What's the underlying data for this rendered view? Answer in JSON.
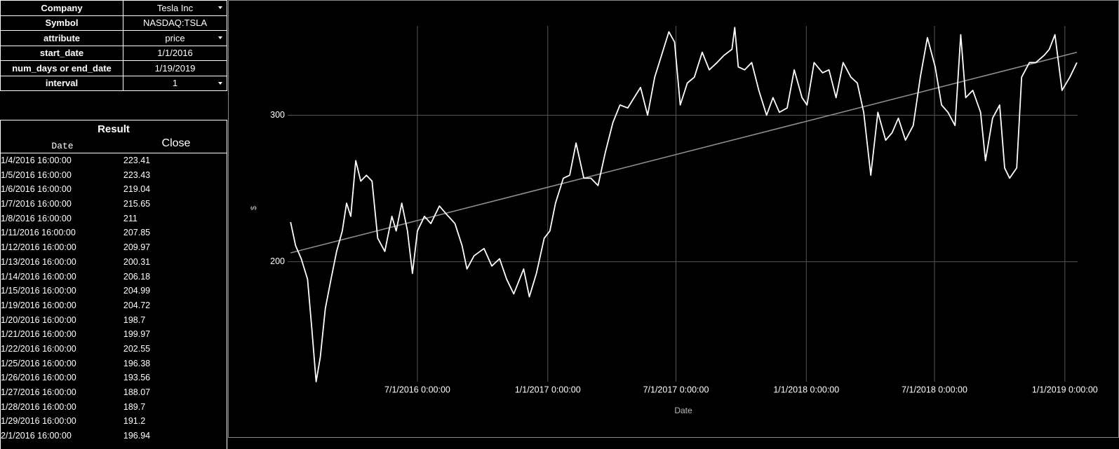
{
  "parameters": {
    "rows": [
      {
        "label": "Company",
        "value": "Tesla Inc"
      },
      {
        "label": "Symbol",
        "value": "NASDAQ:TSLA"
      },
      {
        "label": "attribute",
        "value": "price"
      },
      {
        "label": "start_date",
        "value": "1/1/2016"
      },
      {
        "label": "num_days or end_date",
        "value": "1/19/2019"
      },
      {
        "label": "interval",
        "value": "1"
      }
    ]
  },
  "result": {
    "title": "Result",
    "columns": [
      "Date",
      "Close"
    ],
    "rows": [
      [
        "1/4/2016 16:00:00",
        223.41
      ],
      [
        "1/5/2016 16:00:00",
        223.43
      ],
      [
        "1/6/2016 16:00:00",
        219.04
      ],
      [
        "1/7/2016 16:00:00",
        215.65
      ],
      [
        "1/8/2016 16:00:00",
        211
      ],
      [
        "1/11/2016 16:00:00",
        207.85
      ],
      [
        "1/12/2016 16:00:00",
        209.97
      ],
      [
        "1/13/2016 16:00:00",
        200.31
      ],
      [
        "1/14/2016 16:00:00",
        206.18
      ],
      [
        "1/15/2016 16:00:00",
        204.99
      ],
      [
        "1/19/2016 16:00:00",
        204.72
      ],
      [
        "1/20/2016 16:00:00",
        198.7
      ],
      [
        "1/21/2016 16:00:00",
        199.97
      ],
      [
        "1/22/2016 16:00:00",
        202.55
      ],
      [
        "1/25/2016 16:00:00",
        196.38
      ],
      [
        "1/26/2016 16:00:00",
        193.56
      ],
      [
        "1/27/2016 16:00:00",
        188.07
      ],
      [
        "1/28/2016 16:00:00",
        189.7
      ],
      [
        "1/29/2016 16:00:00",
        191.2
      ],
      [
        "2/1/2016 16:00:00",
        196.94
      ]
    ]
  },
  "chart_data": {
    "type": "line",
    "y_label": "$",
    "x_label": "Date",
    "x": [
      "2016-01-04",
      "2016-01-11",
      "2016-01-19",
      "2016-01-28",
      "2016-02-03",
      "2016-02-09",
      "2016-02-15",
      "2016-02-22",
      "2016-03-01",
      "2016-03-09",
      "2016-03-17",
      "2016-03-23",
      "2016-03-29",
      "2016-04-05",
      "2016-04-12",
      "2016-04-20",
      "2016-04-28",
      "2016-05-06",
      "2016-05-16",
      "2016-05-26",
      "2016-06-01",
      "2016-06-09",
      "2016-06-17",
      "2016-06-24",
      "2016-07-01",
      "2016-07-11",
      "2016-07-20",
      "2016-08-01",
      "2016-08-10",
      "2016-08-23",
      "2016-09-02",
      "2016-09-09",
      "2016-09-19",
      "2016-10-03",
      "2016-10-14",
      "2016-10-25",
      "2016-11-04",
      "2016-11-14",
      "2016-11-28",
      "2016-12-06",
      "2016-12-16",
      "2016-12-27",
      "2017-01-04",
      "2017-01-12",
      "2017-01-23",
      "2017-02-01",
      "2017-02-10",
      "2017-02-21",
      "2017-03-03",
      "2017-03-13",
      "2017-03-23",
      "2017-04-03",
      "2017-04-13",
      "2017-04-24",
      "2017-05-03",
      "2017-05-12",
      "2017-05-22",
      "2017-06-01",
      "2017-06-12",
      "2017-06-21",
      "2017-06-29",
      "2017-07-07",
      "2017-07-17",
      "2017-07-27",
      "2017-08-07",
      "2017-08-17",
      "2017-08-28",
      "2017-09-07",
      "2017-09-18",
      "2017-09-22",
      "2017-09-27",
      "2017-10-06",
      "2017-10-16",
      "2017-10-26",
      "2017-11-06",
      "2017-11-15",
      "2017-11-24",
      "2017-12-05",
      "2017-12-15",
      "2017-12-26",
      "2018-01-02",
      "2018-01-12",
      "2018-01-24",
      "2018-02-02",
      "2018-02-12",
      "2018-02-22",
      "2018-03-05",
      "2018-03-14",
      "2018-03-23",
      "2018-04-02",
      "2018-04-12",
      "2018-04-23",
      "2018-05-02",
      "2018-05-11",
      "2018-05-21",
      "2018-06-01",
      "2018-06-11",
      "2018-06-21",
      "2018-07-02",
      "2018-07-11",
      "2018-07-20",
      "2018-07-30",
      "2018-08-07",
      "2018-08-14",
      "2018-08-24",
      "2018-09-04",
      "2018-09-11",
      "2018-09-21",
      "2018-10-01",
      "2018-10-08",
      "2018-10-15",
      "2018-10-25",
      "2018-11-01",
      "2018-11-12",
      "2018-11-21",
      "2018-12-03",
      "2018-12-10",
      "2018-12-18",
      "2018-12-28",
      "2019-01-08",
      "2019-01-18"
    ],
    "series": [
      {
        "color": "#ffffff",
        "values": [
          227,
          211,
          202,
          188,
          154,
          118,
          135,
          168,
          188,
          207,
          221,
          240,
          231,
          269,
          255,
          259,
          255,
          216,
          207,
          231,
          221,
          240,
          221,
          192,
          221,
          231,
          226,
          238,
          233,
          226,
          211,
          195,
          204,
          209,
          197,
          202,
          188,
          178,
          195,
          176,
          192,
          216,
          221,
          240,
          257,
          259,
          281,
          257,
          257,
          252,
          274,
          295,
          307,
          305,
          312,
          319,
          300,
          326,
          343,
          357,
          350,
          307,
          322,
          326,
          343,
          331,
          336,
          341,
          345,
          360,
          333,
          331,
          336,
          317,
          300,
          312,
          302,
          305,
          331,
          312,
          307,
          336,
          329,
          331,
          312,
          336,
          326,
          322,
          302,
          259,
          302,
          283,
          288,
          298,
          283,
          293,
          326,
          353,
          333,
          307,
          302,
          293,
          355,
          312,
          317,
          302,
          269,
          298,
          307,
          264,
          257,
          264,
          326,
          336,
          336,
          341,
          345,
          355,
          317,
          326,
          336
        ]
      }
    ],
    "trendline": {
      "x": [
        "2016-01-04",
        "2019-01-18"
      ],
      "values": [
        206,
        343
      ],
      "color": "#8c8c8c"
    },
    "xlim": [
      "2015-12-13",
      "2019-01-19"
    ],
    "ylim": [
      118,
      361
    ],
    "xticks": [
      {
        "value": "2016-07-01",
        "label": "7/1/2016 0:00:00"
      },
      {
        "value": "2017-01-01",
        "label": "1/1/2017 0:00:00"
      },
      {
        "value": "2017-07-01",
        "label": "7/1/2017 0:00:00"
      },
      {
        "value": "2018-01-01",
        "label": "1/1/2018 0:00:00"
      },
      {
        "value": "2018-07-01",
        "label": "7/1/2018 0:00:00"
      },
      {
        "value": "2019-01-01",
        "label": "1/1/2019 0:00:00"
      }
    ],
    "yticks": [
      200,
      300
    ],
    "grid": true
  }
}
